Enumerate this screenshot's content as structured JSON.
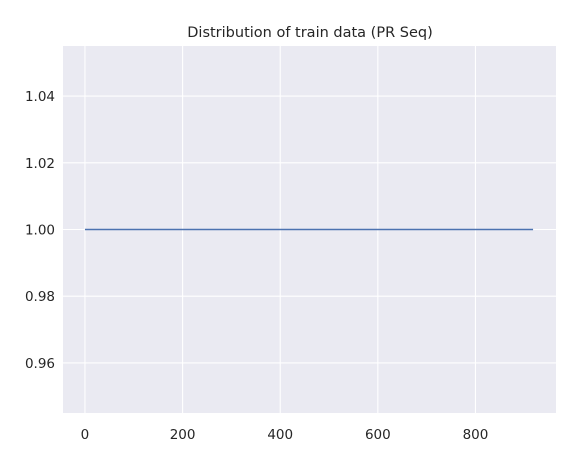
{
  "chart_data": {
    "type": "line",
    "title": "Distribution of train data (PR Seq)",
    "xlabel": "",
    "ylabel": "",
    "xlim": [
      -45,
      965
    ],
    "ylim": [
      0.945,
      1.055
    ],
    "xticks": [
      0,
      200,
      400,
      600,
      800
    ],
    "xtick_labels": [
      "0",
      "200",
      "400",
      "600",
      "800"
    ],
    "yticks": [
      0.96,
      0.98,
      1.0,
      1.02,
      1.04
    ],
    "ytick_labels": [
      "0.96",
      "0.98",
      "1.00",
      "1.02",
      "1.04"
    ],
    "grid": true,
    "legend": "none",
    "colors": {
      "plot_background": "#eaeaf2",
      "grid": "#ffffff",
      "series": "#4c72b0"
    },
    "series": [
      {
        "x": [
          0,
          918
        ],
        "y": [
          1.0,
          1.0
        ]
      }
    ]
  }
}
